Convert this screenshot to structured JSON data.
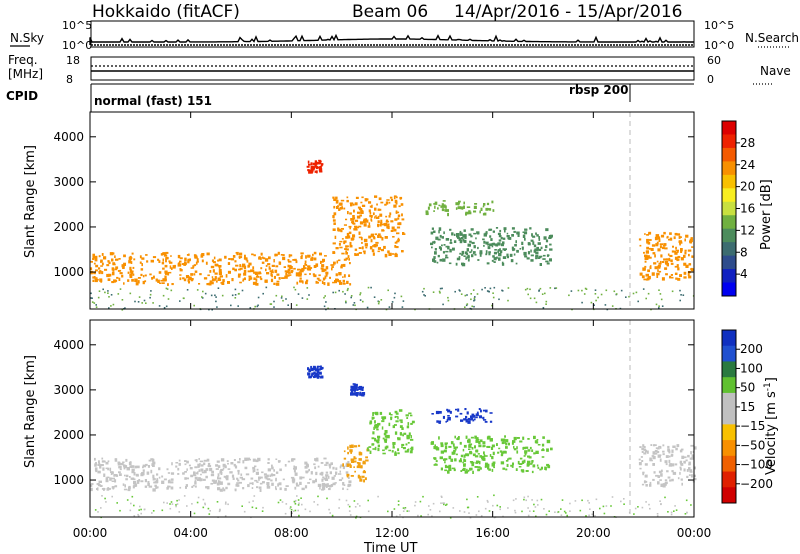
{
  "header": {
    "station": "Hokkaido (fitACF)",
    "beam": "Beam 06",
    "date_range": "14/Apr/2016 - 15/Apr/2016"
  },
  "top_panels": {
    "nsky_label": "N.Sky",
    "nsearch_label": "N.Search",
    "freq_label": "Freq.",
    "freq_unit": "[MHz]",
    "nave_label": "Nave",
    "cpid_label": "CPID",
    "left_ticks_nsky": [
      "10^5",
      "10^0"
    ],
    "right_ticks_nsky": [
      "10^5",
      "10^0"
    ],
    "left_ticks_freq": [
      "18",
      "8"
    ],
    "right_ticks_nave": [
      "60",
      "0"
    ],
    "cpid_modes": [
      {
        "name": "normal (fast) 151",
        "start_hour": 0
      },
      {
        "name": "rbsp 200",
        "start_hour": 21.3
      }
    ]
  },
  "chart_data": [
    {
      "type": "heatmap",
      "title": "",
      "ylabel": "Slant Range [km]",
      "xlabel": "",
      "xlim": [
        0,
        24
      ],
      "ylim": [
        180,
        4550
      ],
      "y_ticks": [
        1000,
        2000,
        3000,
        4000
      ],
      "x_ticks": [
        "00:00",
        "04:00",
        "08:00",
        "12:00",
        "16:00",
        "20:00",
        "00:00"
      ],
      "colorbar": {
        "label": "Power [dB]",
        "ticks": [
          "28",
          "24",
          "20",
          "16",
          "12",
          "8",
          "4"
        ],
        "colors": [
          "#dd0000",
          "#ee2200",
          "#f45a00",
          "#f89000",
          "#f8c000",
          "#f8ee20",
          "#c8e040",
          "#70b040",
          "#4c8c5c",
          "#3c6c70",
          "#2e4c8c",
          "#1020c0",
          "#0000f0"
        ]
      },
      "regions": [
        {
          "feature": "backscatter band",
          "t": [
            0,
            10.3
          ],
          "range_km": [
            750,
            1450
          ],
          "level_db": 24
        },
        {
          "feature": "rising band",
          "t": [
            9.6,
            12.4
          ],
          "range_km": [
            1400,
            2700
          ],
          "level_db": 24
        },
        {
          "feature": "patch",
          "t": [
            8.6,
            9.2
          ],
          "range_km": [
            3250,
            3500
          ],
          "level_db": 28
        },
        {
          "feature": "patch",
          "t": [
            13.2,
            16.0
          ],
          "range_km": [
            2300,
            2600
          ],
          "level_db": 14
        },
        {
          "feature": "streak",
          "t": [
            13.5,
            18.3
          ],
          "range_km": [
            1200,
            2000
          ],
          "level_db": 12
        },
        {
          "feature": "band",
          "t": [
            21.8,
            24
          ],
          "range_km": [
            850,
            1900
          ],
          "level_db": 22
        }
      ]
    },
    {
      "type": "heatmap",
      "title": "",
      "ylabel": "Slant Range [km]",
      "xlabel": "Time UT",
      "xlim": [
        0,
        24
      ],
      "ylim": [
        180,
        4550
      ],
      "y_ticks": [
        1000,
        2000,
        3000,
        4000
      ],
      "x_ticks": [
        "00:00",
        "04:00",
        "08:00",
        "12:00",
        "16:00",
        "20:00",
        "00:00"
      ],
      "colorbar": {
        "label": "Velocity [m s^-1]",
        "ticks": [
          "200",
          "100",
          "50",
          "15",
          "-15",
          "-50",
          "-100",
          "-200"
        ],
        "colors": [
          "#1030c0",
          "#2050d0",
          "#2a7a40",
          "#60c030",
          "#c0c0c0",
          "#c0c0c0",
          "#f8c000",
          "#f89000",
          "#f06000",
          "#e02000",
          "#d00000"
        ]
      },
      "regions": [
        {
          "feature": "ground scatter band",
          "t": [
            0,
            10.3
          ],
          "range_km": [
            800,
            1500
          ],
          "velocity": 0
        },
        {
          "feature": "rising band",
          "t": [
            10.0,
            11.0
          ],
          "range_km": [
            1000,
            1800
          ],
          "velocity": -60
        },
        {
          "feature": "rising band",
          "t": [
            11.0,
            12.8
          ],
          "range_km": [
            1600,
            2600
          ],
          "velocity": 40
        },
        {
          "feature": "patch",
          "t": [
            8.6,
            9.2
          ],
          "range_km": [
            3300,
            3550
          ],
          "velocity": 150
        },
        {
          "feature": "patch",
          "t": [
            10.3,
            10.8
          ],
          "range_km": [
            2900,
            3150
          ],
          "velocity": 180
        },
        {
          "feature": "patch",
          "t": [
            13.4,
            16.0
          ],
          "range_km": [
            2300,
            2600
          ],
          "velocity": 180
        },
        {
          "feature": "streak",
          "t": [
            13.5,
            18.3
          ],
          "range_km": [
            1200,
            2000
          ],
          "velocity": 40
        },
        {
          "feature": "band",
          "t": [
            21.8,
            24
          ],
          "range_km": [
            900,
            1800
          ],
          "velocity": 0
        }
      ]
    }
  ]
}
